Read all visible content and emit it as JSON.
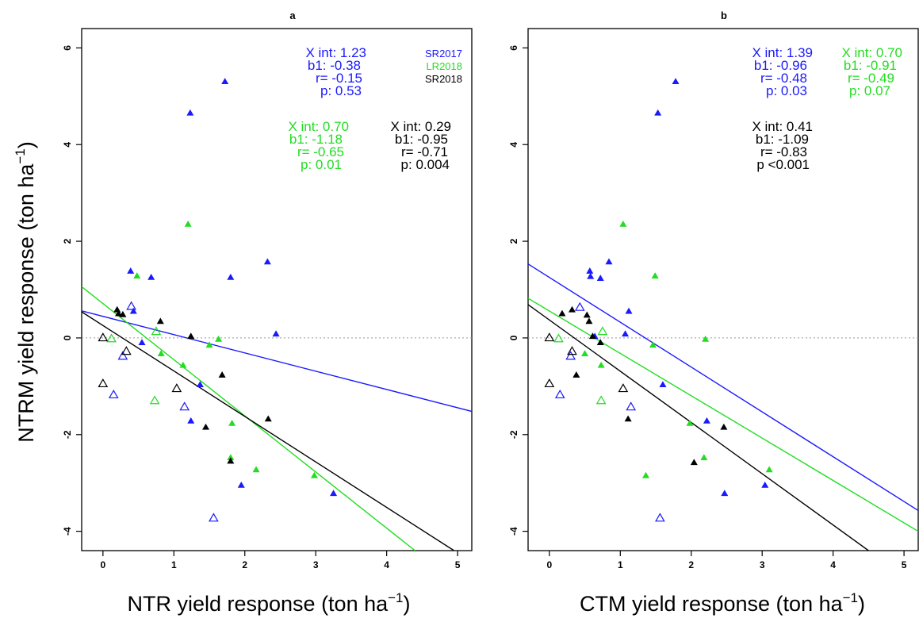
{
  "figure": {
    "ylabel": "NTRM yield response (ton ha−1)",
    "ylabel_main": "NTRM yield response (ton ha",
    "ylabel_sup": "−1",
    "ylabel_close": ")"
  },
  "colors": {
    "SR2017": "#1a1aff",
    "LR2018": "#22dd22",
    "SR2018": "#000000",
    "zero_line": "#999999"
  },
  "legend": [
    {
      "label": "SR2017",
      "color": "#1a1aff"
    },
    {
      "label": "LR2018",
      "color": "#22dd22"
    },
    {
      "label": "SR2018",
      "color": "#000000"
    }
  ],
  "chart_data": [
    {
      "type": "scatter",
      "panel": "a",
      "title": "a",
      "xlabel": "NTR yield response (ton ha−1)",
      "xlabel_main": "NTR yield response (ton ha",
      "xlabel_sup": "−1",
      "xlabel_close": ")",
      "ylabel": "NTRM yield response (ton ha−1)",
      "xlim": [
        -0.3,
        5.2
      ],
      "ylim": [
        -4.4,
        6.4
      ],
      "xticks": [
        "0",
        "1",
        "2",
        "3",
        "4",
        "5"
      ],
      "yticks": [
        "-4",
        "-2",
        "0",
        "2",
        "4",
        "6"
      ],
      "legend_position": "top-right",
      "zero_line": true,
      "series": [
        {
          "name": "SR2017",
          "color": "#1a1aff",
          "filled": [
            [
              1.72,
              5.3
            ],
            [
              1.23,
              4.65
            ],
            [
              0.39,
              1.38
            ],
            [
              0.68,
              1.25
            ],
            [
              1.8,
              1.25
            ],
            [
              2.32,
              1.57
            ],
            [
              2.44,
              0.08
            ],
            [
              0.43,
              0.55
            ],
            [
              0.55,
              -0.1
            ],
            [
              1.37,
              -0.97
            ],
            [
              1.24,
              -1.72
            ],
            [
              1.95,
              -3.05
            ],
            [
              3.25,
              -3.22
            ]
          ],
          "open": [
            [
              0.4,
              0.65
            ],
            [
              0.28,
              -0.38
            ],
            [
              0.15,
              -1.18
            ],
            [
              1.15,
              -1.43
            ],
            [
              1.56,
              -3.73
            ]
          ],
          "fit": [
            [
              -0.3,
              0.56
            ],
            [
              5.2,
              -1.52
            ]
          ],
          "stats": {
            "x_int": "X int: 1.23",
            "b1": "b1: -0.38",
            "r": "r= -0.15",
            "p": "p: 0.53"
          }
        },
        {
          "name": "LR2018",
          "color": "#22dd22",
          "filled": [
            [
              0.48,
              1.28
            ],
            [
              1.2,
              2.35
            ],
            [
              0.82,
              -0.33
            ],
            [
              1.5,
              -0.15
            ],
            [
              1.63,
              -0.03
            ],
            [
              1.13,
              -0.57
            ],
            [
              1.82,
              -1.77
            ],
            [
              1.8,
              -2.48
            ],
            [
              2.16,
              -2.73
            ],
            [
              2.98,
              -2.85
            ]
          ],
          "open": [
            [
              0.12,
              -0.02
            ],
            [
              0.75,
              0.13
            ],
            [
              0.73,
              -1.3
            ]
          ],
          "fit": [
            [
              -0.3,
              1.06
            ],
            [
              4.4,
              -4.4
            ]
          ],
          "stats": {
            "x_int": "X int: 0.70",
            "b1": "b1: -1.18",
            "r": "r= -0.65",
            "p": "p: 0.01"
          }
        },
        {
          "name": "SR2018",
          "color": "#000000",
          "filled": [
            [
              0.2,
              0.58
            ],
            [
              0.22,
              0.5
            ],
            [
              0.28,
              0.48
            ],
            [
              0.81,
              0.34
            ],
            [
              1.24,
              0.03
            ],
            [
              1.68,
              -0.77
            ],
            [
              1.45,
              -1.85
            ],
            [
              2.33,
              -1.68
            ],
            [
              1.8,
              -2.55
            ]
          ],
          "open": [
            [
              0.0,
              0.0
            ],
            [
              0.33,
              -0.28
            ],
            [
              0.0,
              -0.95
            ],
            [
              1.04,
              -1.05
            ]
          ],
          "fit": [
            [
              -0.3,
              0.54
            ],
            [
              4.95,
              -4.4
            ]
          ],
          "stats": {
            "x_int": "X int: 0.29",
            "b1": "b1: -0.95",
            "r": "r= -0.71",
            "p": "p: 0.004"
          }
        }
      ]
    },
    {
      "type": "scatter",
      "panel": "b",
      "title": "b",
      "xlabel": "CTM yield response (ton ha−1)",
      "xlabel_main": "CTM yield response (ton ha",
      "xlabel_sup": "−1",
      "xlabel_close": ")",
      "xlim": [
        -0.3,
        5.2
      ],
      "ylim": [
        -4.4,
        6.4
      ],
      "xticks": [
        "0",
        "1",
        "2",
        "3",
        "4",
        "5"
      ],
      "yticks": [
        "-4",
        "-2",
        "0",
        "2",
        "4",
        "6"
      ],
      "zero_line": true,
      "series": [
        {
          "name": "SR2017",
          "color": "#1a1aff",
          "filled": [
            [
              1.78,
              5.3
            ],
            [
              1.53,
              4.65
            ],
            [
              0.57,
              1.38
            ],
            [
              0.58,
              1.27
            ],
            [
              0.72,
              1.23
            ],
            [
              0.84,
              1.57
            ],
            [
              1.12,
              0.55
            ],
            [
              1.07,
              0.08
            ],
            [
              0.64,
              0.03
            ],
            [
              1.6,
              -0.97
            ],
            [
              2.22,
              -1.72
            ],
            [
              2.47,
              -3.22
            ],
            [
              3.04,
              -3.05
            ]
          ],
          "open": [
            [
              0.43,
              0.63
            ],
            [
              0.3,
              -0.38
            ],
            [
              0.15,
              -1.18
            ],
            [
              1.15,
              -1.43
            ],
            [
              1.56,
              -3.73
            ]
          ],
          "fit": [
            [
              -0.3,
              1.53
            ],
            [
              5.2,
              -3.57
            ]
          ],
          "stats": {
            "x_int": "X int: 1.39",
            "b1": "b1: -0.96",
            "r": "r= -0.48",
            "p": "p: 0.03"
          }
        },
        {
          "name": "LR2018",
          "color": "#22dd22",
          "filled": [
            [
              1.04,
              2.35
            ],
            [
              1.49,
              1.28
            ],
            [
              1.46,
              -0.15
            ],
            [
              2.2,
              -0.03
            ],
            [
              0.5,
              -0.33
            ],
            [
              0.73,
              -0.57
            ],
            [
              1.98,
              -1.77
            ],
            [
              2.18,
              -2.48
            ],
            [
              3.1,
              -2.73
            ],
            [
              1.36,
              -2.85
            ]
          ],
          "open": [
            [
              0.13,
              -0.02
            ],
            [
              0.75,
              0.13
            ],
            [
              0.73,
              -1.3
            ]
          ],
          "fit": [
            [
              -0.3,
              0.82
            ],
            [
              5.2,
              -4.0
            ]
          ],
          "stats": {
            "x_int": "X int: 0.70",
            "b1": "b1: -0.91",
            "r": "r= -0.49",
            "p": "p: 0.07"
          }
        },
        {
          "name": "SR2018",
          "color": "#000000",
          "filled": [
            [
              0.18,
              0.5
            ],
            [
              0.32,
              0.58
            ],
            [
              0.53,
              0.47
            ],
            [
              0.56,
              0.34
            ],
            [
              0.61,
              0.03
            ],
            [
              0.72,
              -0.1
            ],
            [
              0.38,
              -0.77
            ],
            [
              1.11,
              -1.68
            ],
            [
              2.04,
              -2.58
            ],
            [
              2.46,
              -1.85
            ]
          ],
          "open": [
            [
              0.0,
              0.0
            ],
            [
              0.32,
              -0.28
            ],
            [
              0.0,
              -0.95
            ],
            [
              1.04,
              -1.05
            ]
          ],
          "fit": [
            [
              -0.3,
              0.69
            ],
            [
              4.5,
              -4.4
            ]
          ],
          "stats": {
            "x_int": "X int: 0.41",
            "b1": "b1: -1.09",
            "r": "r= -0.83",
            "p": "p <0.001"
          }
        }
      ]
    }
  ]
}
